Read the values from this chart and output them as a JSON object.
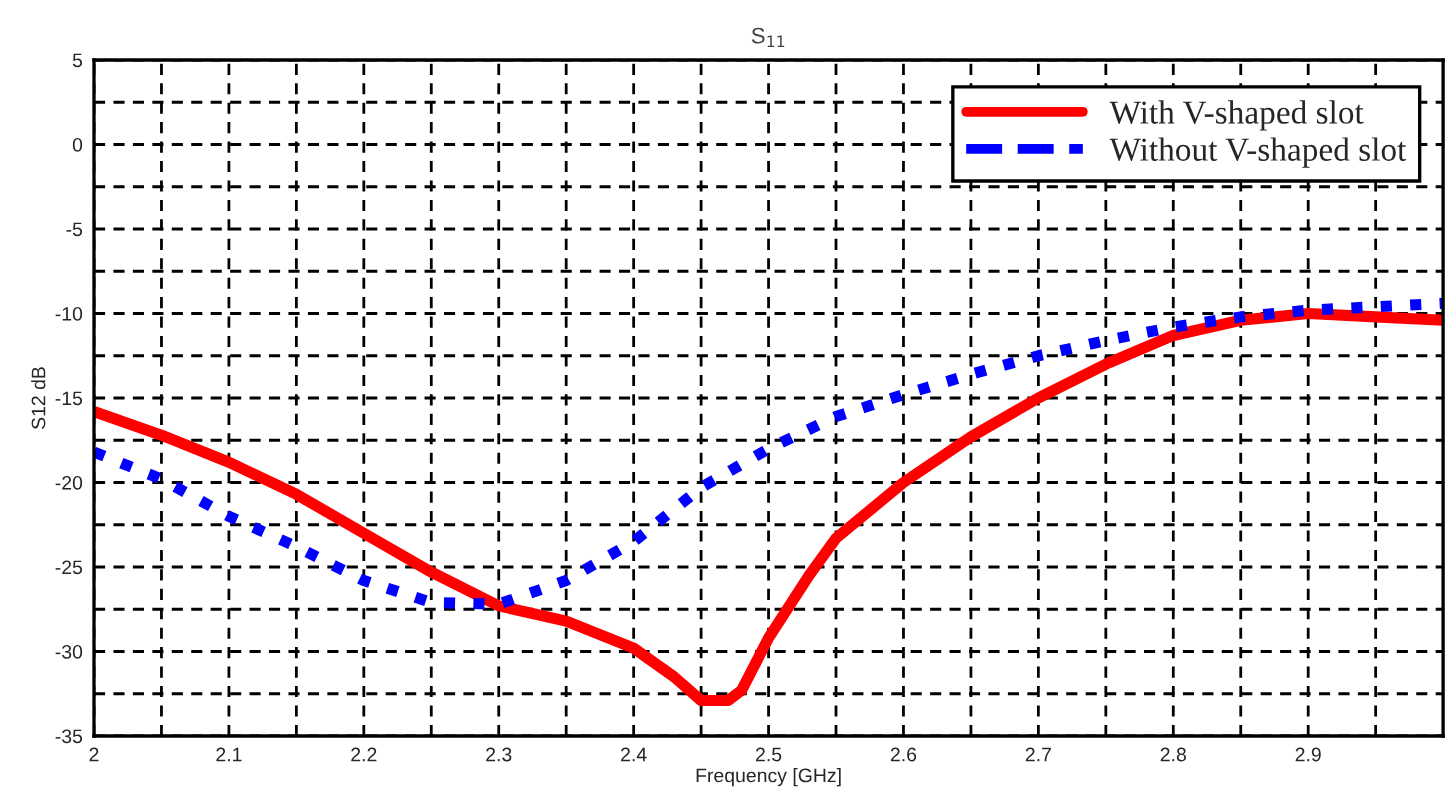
{
  "chart_data": {
    "type": "line",
    "title": "S$_{11}$",
    "xlabel": "Frequency [GHz]",
    "ylabel": "S12 dB",
    "series": [
      {
        "name": "With V-shaped slot",
        "color": "#ff0000",
        "line_style": "solid",
        "x": [
          2.0,
          2.05,
          2.1,
          2.15,
          2.2,
          2.25,
          2.3,
          2.35,
          2.4,
          2.43,
          2.45,
          2.47,
          2.48,
          2.5,
          2.53,
          2.55,
          2.6,
          2.65,
          2.7,
          2.75,
          2.8,
          2.85,
          2.9,
          2.95,
          3.0
        ],
        "values": [
          -15.8,
          -17.2,
          -18.8,
          -20.7,
          -23,
          -25.3,
          -27.3,
          -28.2,
          -29.8,
          -31.5,
          -32.9,
          -32.9,
          -32.3,
          -29.2,
          -25.5,
          -23.3,
          -20,
          -17.3,
          -15,
          -13,
          -11.3,
          -10.4,
          -10,
          -10.2,
          -10.4
        ]
      },
      {
        "name": "Without V-shaped slot",
        "color": "#0000ff",
        "line_style": "dotted",
        "x": [
          2.0,
          2.05,
          2.1,
          2.15,
          2.2,
          2.25,
          2.3,
          2.35,
          2.4,
          2.45,
          2.5,
          2.55,
          2.6,
          2.65,
          2.7,
          2.75,
          2.8,
          2.85,
          2.9,
          2.95,
          3.0
        ],
        "values": [
          -18.2,
          -19.8,
          -22,
          -23.8,
          -25.8,
          -27.1,
          -27.2,
          -25.8,
          -23.5,
          -20.3,
          -18,
          -16.1,
          -14.8,
          -13.6,
          -12.5,
          -11.6,
          -10.8,
          -10.2,
          -9.8,
          -9.6,
          -9.4
        ]
      }
    ],
    "xlim": [
      2,
      3
    ],
    "ylim": [
      -35,
      5
    ],
    "xticks": [
      2,
      {
        "value": 2.05,
        "label": null
      },
      2.1,
      {
        "value": 2.15,
        "label": null
      },
      2.2,
      {
        "value": 2.25,
        "label": null
      },
      2.3,
      {
        "value": 2.35,
        "label": null
      },
      2.4,
      {
        "value": 2.45,
        "label": null
      },
      2.5,
      {
        "value": 2.55,
        "label": null
      },
      2.6,
      {
        "value": 2.65,
        "label": null
      },
      2.7,
      {
        "value": 2.75,
        "label": null
      },
      2.8,
      {
        "value": 2.85,
        "label": null
      },
      2.9,
      {
        "value": 2.95,
        "label": null
      }
    ],
    "yticks": [
      -35,
      {
        "value": -32.5,
        "label": null
      },
      -30,
      {
        "value": -27.5,
        "label": null
      },
      -25,
      {
        "value": -22.5,
        "label": null
      },
      -20,
      {
        "value": -17.5,
        "label": null
      },
      -15,
      {
        "value": -12.5,
        "label": null
      },
      -10,
      {
        "value": -7.5,
        "label": null
      },
      -5,
      {
        "value": -2.5,
        "label": null
      },
      0,
      {
        "value": 2.5,
        "label": null
      },
      5
    ],
    "grid": true,
    "legend": "top right"
  }
}
